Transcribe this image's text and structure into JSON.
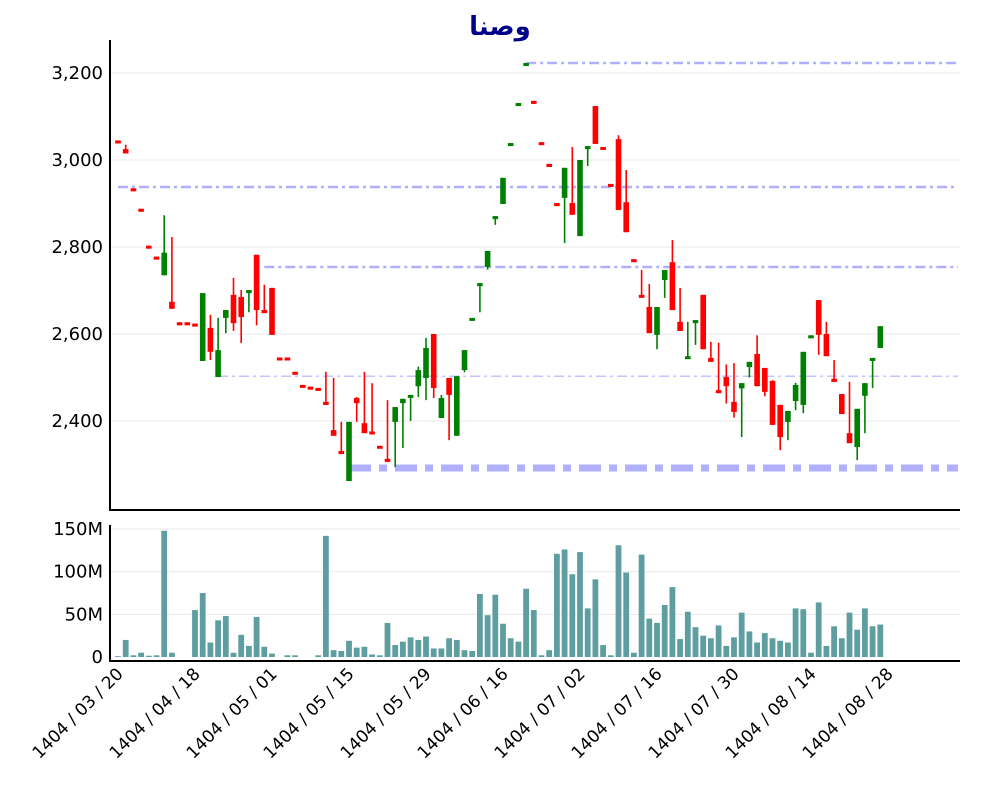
{
  "chart_data": {
    "type": "candlestick",
    "title": "وصنا",
    "price_axis": {
      "ylim": [
        2220,
        3280
      ],
      "ticks": [
        2400,
        2600,
        2800,
        3000,
        3200
      ],
      "tick_labels": [
        "2,400",
        "2,600",
        "2,800",
        "3,000",
        "3,200"
      ],
      "grid": true
    },
    "volume_axis": {
      "ylim": [
        0,
        155
      ],
      "unit": "M",
      "ticks": [
        0,
        50,
        100,
        150
      ],
      "tick_labels": [
        "0",
        "50M",
        "100M",
        "150M"
      ],
      "grid": true
    },
    "x_ticks": [
      {
        "index": 0,
        "label": "1404 / 03 / 20"
      },
      {
        "index": 10,
        "label": "1404 / 04 / 18"
      },
      {
        "index": 20,
        "label": "1404 / 05 / 01"
      },
      {
        "index": 30,
        "label": "1404 / 05 / 15"
      },
      {
        "index": 40,
        "label": "1404 / 05 / 29"
      },
      {
        "index": 50,
        "label": "1404 / 06 / 16"
      },
      {
        "index": 60,
        "label": "1404 / 07 / 02"
      },
      {
        "index": 70,
        "label": "1404 / 07 / 16"
      },
      {
        "index": 80,
        "label": "1404 / 07 / 30"
      },
      {
        "index": 90,
        "label": "1404 / 08 / 14"
      },
      {
        "index": 100,
        "label": "1404 / 08 / 28"
      }
    ],
    "ohlc_fields": [
      "open",
      "high",
      "low",
      "close"
    ],
    "ohlc": [
      [
        3045,
        3045,
        3038,
        3038
      ],
      [
        3025,
        3035,
        3015,
        3015
      ],
      [
        2935,
        2935,
        2928,
        2928
      ],
      [
        2888,
        2888,
        2881,
        2881
      ],
      [
        2803,
        2803,
        2797,
        2797
      ],
      [
        2778,
        2778,
        2771,
        2771
      ],
      [
        2735,
        2873,
        2735,
        2787
      ],
      [
        2674,
        2823,
        2658,
        2658
      ],
      [
        2627,
        2627,
        2620,
        2620
      ],
      [
        2627,
        2627,
        2620,
        2620
      ],
      [
        2624,
        2624,
        2617,
        2617
      ],
      [
        2538,
        2694,
        2538,
        2694
      ],
      [
        2614,
        2644,
        2540,
        2559
      ],
      [
        2501,
        2637,
        2501,
        2563
      ],
      [
        2637,
        2655,
        2602,
        2655
      ],
      [
        2690,
        2729,
        2607,
        2625
      ],
      [
        2685,
        2701,
        2579,
        2639
      ],
      [
        2694,
        2701,
        2650,
        2701
      ],
      [
        2782,
        2782,
        2620,
        2655
      ],
      [
        2655,
        2713,
        2648,
        2648
      ],
      [
        2706,
        2706,
        2598,
        2598
      ],
      [
        2546,
        2546,
        2540,
        2540
      ],
      [
        2546,
        2546,
        2540,
        2540
      ],
      [
        2513,
        2513,
        2507,
        2507
      ],
      [
        2483,
        2483,
        2477,
        2477
      ],
      [
        2479,
        2479,
        2473,
        2473
      ],
      [
        2476,
        2476,
        2471,
        2471
      ],
      [
        2444,
        2513,
        2437,
        2437
      ],
      [
        2379,
        2499,
        2366,
        2366
      ],
      [
        2331,
        2398,
        2326,
        2326
      ],
      [
        2262,
        2398,
        2262,
        2398
      ],
      [
        2453,
        2455,
        2398,
        2441
      ],
      [
        2395,
        2513,
        2372,
        2372
      ],
      [
        2376,
        2487,
        2372,
        2372
      ],
      [
        2343,
        2343,
        2337,
        2337
      ],
      [
        2313,
        2448,
        2306,
        2306
      ],
      [
        2398,
        2432,
        2294,
        2432
      ],
      [
        2441,
        2451,
        2338,
        2451
      ],
      [
        2457,
        2460,
        2400,
        2460
      ],
      [
        2480,
        2525,
        2455,
        2517
      ],
      [
        2499,
        2591,
        2448,
        2568
      ],
      [
        2600,
        2600,
        2453,
        2476
      ],
      [
        2407,
        2460,
        2407,
        2453
      ],
      [
        2499,
        2499,
        2356,
        2460
      ],
      [
        2366,
        2503,
        2366,
        2503
      ],
      [
        2517,
        2563,
        2512,
        2563
      ],
      [
        2631,
        2637,
        2631,
        2637
      ],
      [
        2710,
        2717,
        2650,
        2717
      ],
      [
        2754,
        2791,
        2748,
        2791
      ],
      [
        2867,
        2871,
        2851,
        2871
      ],
      [
        2899,
        2959,
        2899,
        2959
      ],
      [
        3032,
        3039,
        3032,
        3039
      ],
      [
        3124,
        3131,
        3124,
        3131
      ],
      [
        3216,
        3223,
        3216,
        3223
      ],
      [
        3136,
        3136,
        3129,
        3129
      ],
      [
        3041,
        3041,
        3035,
        3035
      ],
      [
        2991,
        2991,
        2984,
        2984
      ],
      [
        2901,
        2901,
        2894,
        2894
      ],
      [
        2913,
        2982,
        2809,
        2982
      ],
      [
        2901,
        3030,
        2874,
        2874
      ],
      [
        2825,
        3000,
        2825,
        3000
      ],
      [
        3028,
        3032,
        2986,
        3032
      ],
      [
        3124,
        3124,
        3037,
        3037
      ],
      [
        3030,
        3030,
        3023,
        3023
      ],
      [
        2945,
        2945,
        2938,
        2938
      ],
      [
        3048,
        3057,
        2885,
        2885
      ],
      [
        2903,
        2977,
        2834,
        2834
      ],
      [
        2772,
        2772,
        2766,
        2766
      ],
      [
        2690,
        2747,
        2685,
        2685
      ],
      [
        2662,
        2715,
        2602,
        2602
      ],
      [
        2598,
        2662,
        2565,
        2662
      ],
      [
        2724,
        2747,
        2683,
        2747
      ],
      [
        2765,
        2816,
        2655,
        2655
      ],
      [
        2628,
        2706,
        2607,
        2607
      ],
      [
        2545,
        2628,
        2545,
        2549
      ],
      [
        2625,
        2632,
        2575,
        2632
      ],
      [
        2690,
        2690,
        2565,
        2565
      ],
      [
        2545,
        2582,
        2536,
        2536
      ],
      [
        2471,
        2580,
        2464,
        2464
      ],
      [
        2501,
        2530,
        2440,
        2480
      ],
      [
        2444,
        2533,
        2408,
        2421
      ],
      [
        2475,
        2487,
        2363,
        2487
      ],
      [
        2524,
        2536,
        2500,
        2536
      ],
      [
        2554,
        2597,
        2480,
        2480
      ],
      [
        2522,
        2522,
        2457,
        2467
      ],
      [
        2492,
        2494,
        2391,
        2391
      ],
      [
        2437,
        2437,
        2333,
        2363
      ],
      [
        2398,
        2423,
        2356,
        2423
      ],
      [
        2446,
        2488,
        2425,
        2483
      ],
      [
        2437,
        2559,
        2418,
        2559
      ],
      [
        2594,
        2597,
        2594,
        2597
      ],
      [
        2678,
        2678,
        2552,
        2598
      ],
      [
        2600,
        2628,
        2549,
        2549
      ],
      [
        2497,
        2540,
        2490,
        2490
      ],
      [
        2462,
        2462,
        2416,
        2416
      ],
      [
        2372,
        2490,
        2349,
        2349
      ],
      [
        2340,
        2428,
        2310,
        2428
      ],
      [
        2458,
        2487,
        2372,
        2487
      ],
      [
        2538,
        2545,
        2476,
        2545
      ],
      [
        2568,
        2618,
        2568,
        2618
      ]
    ],
    "volume_millions": [
      1,
      20,
      2,
      5,
      1.5,
      2,
      148,
      5,
      0,
      0,
      55,
      75,
      17,
      43,
      48,
      5,
      26,
      13,
      47,
      12,
      4,
      0,
      2,
      2,
      0,
      0,
      2,
      142,
      8,
      7,
      19,
      11,
      12,
      3,
      2,
      40,
      14,
      18,
      23,
      20,
      24,
      10,
      10,
      22,
      20,
      8,
      7,
      74,
      49,
      73,
      39,
      22,
      18,
      80,
      55,
      2,
      8,
      121,
      126,
      97,
      123,
      57,
      91,
      14,
      2,
      131,
      99,
      5,
      120,
      45,
      40,
      61,
      82,
      21,
      53,
      35,
      25,
      22,
      37,
      13,
      23,
      52,
      30,
      17,
      28,
      22,
      19,
      17,
      57,
      56,
      5,
      64,
      13,
      36,
      22,
      52,
      32,
      57,
      36,
      38
    ],
    "reference_lines": [
      {
        "value": 3223,
        "start_index": 53
      },
      {
        "value": 2938,
        "start_index": 0
      },
      {
        "value": 2754,
        "start_index": 19
      },
      {
        "value": 2503,
        "start_index": 13
      },
      {
        "value": 2292,
        "start_index": 30
      }
    ],
    "colors": {
      "up": "#008000",
      "down": "#ff0000",
      "volume": "#5f9ea0",
      "reference": "#b0b0ff",
      "title": "#00008b"
    }
  }
}
